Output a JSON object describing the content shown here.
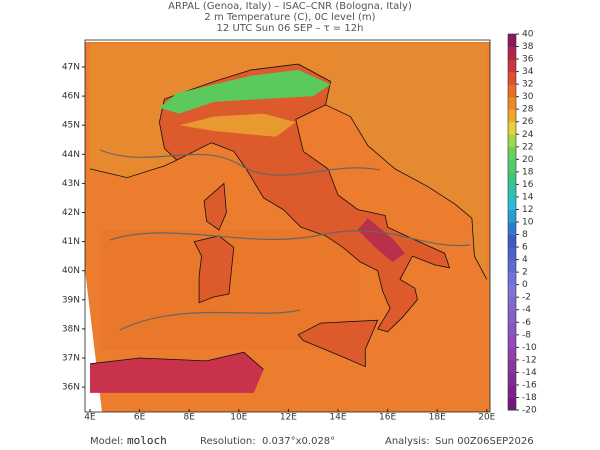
{
  "header": {
    "lines": [
      "ARPAL (Genoa, Italy)  –  ISAC–CNR (Bologna, Italy)",
      "2 m Temperature (C), 0C level (m)",
      "12 UTC Sun 06 SEP  –  τ = 12h"
    ]
  },
  "map": {
    "lat_labels": [
      "47N",
      "46N",
      "45N",
      "44N",
      "43N",
      "42N",
      "41N",
      "40N",
      "39N",
      "38N",
      "37N",
      "36N"
    ],
    "lon_labels": [
      "4E",
      "6E",
      "8E",
      "10E",
      "12E",
      "14E",
      "16E",
      "18E",
      "20E"
    ]
  },
  "colorbar": {
    "ticks": [
      -20,
      -18,
      -16,
      -14,
      -12,
      -10,
      -8,
      -6,
      -4,
      -2,
      0,
      2,
      4,
      6,
      8,
      10,
      12,
      14,
      16,
      18,
      20,
      22,
      24,
      26,
      28,
      30,
      32,
      34,
      36,
      38,
      40
    ]
  },
  "footer": {
    "model_label": "Model:",
    "model": "moloch",
    "resolution_label": "Resolution:",
    "resolution": "0.037°x0.028°",
    "analysis_label": "Analysis:",
    "analysis": "Sun 00Z06SEP2026"
  }
}
